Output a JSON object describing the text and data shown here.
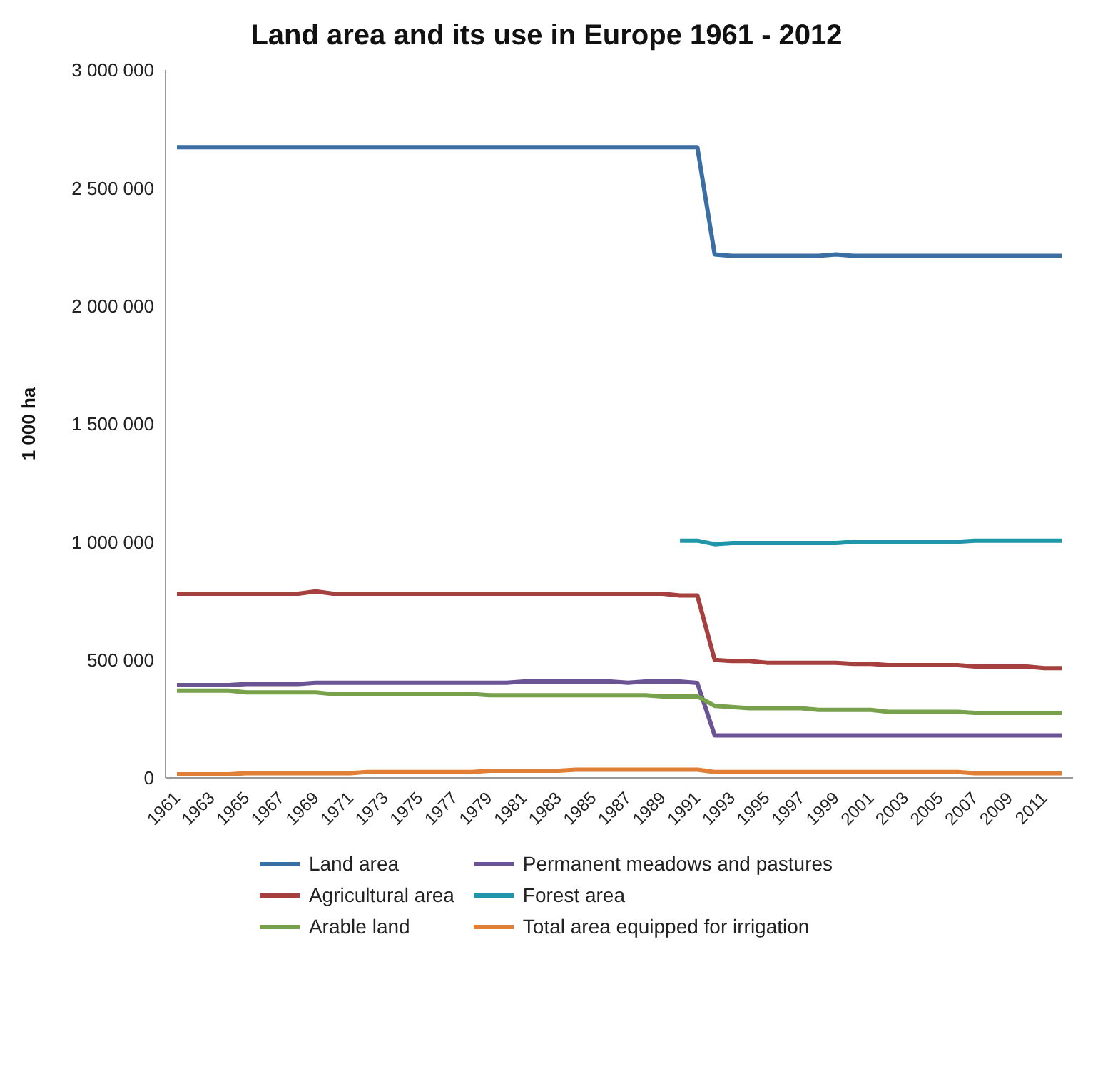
{
  "chart_data": {
    "type": "line",
    "title": "Land area and its use in Europe 1961 - 2012",
    "ylabel": "1 000 ha",
    "categories": [
      "1961",
      null,
      "1963",
      null,
      "1965",
      null,
      "1967",
      null,
      "1969",
      null,
      "1971",
      null,
      "1973",
      null,
      "1975",
      null,
      "1977",
      null,
      "1979",
      null,
      "1981",
      null,
      "1983",
      null,
      "1985",
      null,
      "1987",
      null,
      "1989",
      null,
      "1991",
      null,
      "1993",
      null,
      "1995",
      null,
      "1997",
      null,
      "1999",
      null,
      "2001",
      null,
      "2003",
      null,
      "2005",
      null,
      "2007",
      null,
      "2009",
      null,
      "2011",
      null
    ],
    "series": [
      {
        "name": "Land area",
        "color": "#3b6ea5",
        "values": [
          2673000,
          2673000,
          2673000,
          2673000,
          2673000,
          2673000,
          2673000,
          2673000,
          2673000,
          2673000,
          2673000,
          2673000,
          2673000,
          2673000,
          2673000,
          2673000,
          2673000,
          2673000,
          2673000,
          2673000,
          2673000,
          2673000,
          2673000,
          2673000,
          2673000,
          2673000,
          2673000,
          2673000,
          2673000,
          2673000,
          2673000,
          2218000,
          2212000,
          2212000,
          2212000,
          2212000,
          2212000,
          2212000,
          2218000,
          2212000,
          2212000,
          2212000,
          2212000,
          2212000,
          2212000,
          2212000,
          2212000,
          2212000,
          2212000,
          2212000,
          2212000,
          2212000
        ]
      },
      {
        "name": "Permanent meadows and pastures",
        "color": "#6a5493",
        "values": [
          393000,
          393000,
          393000,
          393000,
          398000,
          398000,
          398000,
          398000,
          403000,
          403000,
          403000,
          403000,
          403000,
          403000,
          403000,
          403000,
          403000,
          403000,
          403000,
          403000,
          408000,
          408000,
          408000,
          408000,
          408000,
          408000,
          403000,
          408000,
          408000,
          408000,
          402000,
          180000,
          180000,
          180000,
          180000,
          180000,
          180000,
          180000,
          180000,
          180000,
          180000,
          180000,
          180000,
          180000,
          180000,
          180000,
          180000,
          180000,
          180000,
          180000,
          180000,
          180000
        ]
      },
      {
        "name": "Agricultural area",
        "color": "#a5403f",
        "values": [
          780000,
          780000,
          780000,
          780000,
          780000,
          780000,
          780000,
          780000,
          790000,
          780000,
          780000,
          780000,
          780000,
          780000,
          780000,
          780000,
          780000,
          780000,
          780000,
          780000,
          780000,
          780000,
          780000,
          780000,
          780000,
          780000,
          780000,
          780000,
          780000,
          773000,
          773000,
          500000,
          495000,
          495000,
          488000,
          488000,
          488000,
          488000,
          488000,
          483000,
          483000,
          478000,
          478000,
          478000,
          478000,
          478000,
          472000,
          472000,
          472000,
          472000,
          465000,
          465000
        ]
      },
      {
        "name": "Forest area",
        "color": "#2196ab",
        "values": [
          null,
          null,
          null,
          null,
          null,
          null,
          null,
          null,
          null,
          null,
          null,
          null,
          null,
          null,
          null,
          null,
          null,
          null,
          null,
          null,
          null,
          null,
          null,
          null,
          null,
          null,
          null,
          null,
          null,
          1005000,
          1005000,
          990000,
          995000,
          995000,
          995000,
          995000,
          995000,
          995000,
          995000,
          1000000,
          1000000,
          1000000,
          1000000,
          1000000,
          1000000,
          1000000,
          1005000,
          1005000,
          1005000,
          1005000,
          1005000,
          1005000
        ]
      },
      {
        "name": "Arable land",
        "color": "#78a14b",
        "values": [
          370000,
          370000,
          370000,
          370000,
          362000,
          362000,
          362000,
          362000,
          362000,
          355000,
          355000,
          355000,
          355000,
          355000,
          355000,
          355000,
          355000,
          355000,
          350000,
          350000,
          350000,
          350000,
          350000,
          350000,
          350000,
          350000,
          350000,
          350000,
          345000,
          345000,
          345000,
          305000,
          300000,
          295000,
          295000,
          295000,
          295000,
          288000,
          288000,
          288000,
          288000,
          280000,
          280000,
          280000,
          280000,
          280000,
          275000,
          275000,
          275000,
          275000,
          275000,
          275000
        ]
      },
      {
        "name": "Total area equipped for irrigation",
        "color": "#e07f35",
        "values": [
          15000,
          15000,
          15000,
          15000,
          20000,
          20000,
          20000,
          20000,
          20000,
          20000,
          20000,
          25000,
          25000,
          25000,
          25000,
          25000,
          25000,
          25000,
          30000,
          30000,
          30000,
          30000,
          30000,
          35000,
          35000,
          35000,
          35000,
          35000,
          35000,
          35000,
          35000,
          25000,
          25000,
          25000,
          25000,
          25000,
          25000,
          25000,
          25000,
          25000,
          25000,
          25000,
          25000,
          25000,
          25000,
          25000,
          20000,
          20000,
          20000,
          20000,
          20000,
          20000
        ]
      }
    ],
    "ylim": [
      0,
      3000000
    ],
    "yticks": [
      0,
      {
        "value": 500000,
        "label": "500 000"
      },
      {
        "value": 1000000,
        "label": "1 000 000"
      },
      {
        "value": 1500000,
        "label": "1 500 000"
      },
      {
        "value": 2000000,
        "label": "2 000 000"
      },
      {
        "value": 2500000,
        "label": "2 500 000"
      },
      {
        "value": 3000000,
        "label": "3 000 000"
      }
    ],
    "grid": false,
    "legend": "bottom",
    "marker": "none",
    "line_style": "solid"
  }
}
